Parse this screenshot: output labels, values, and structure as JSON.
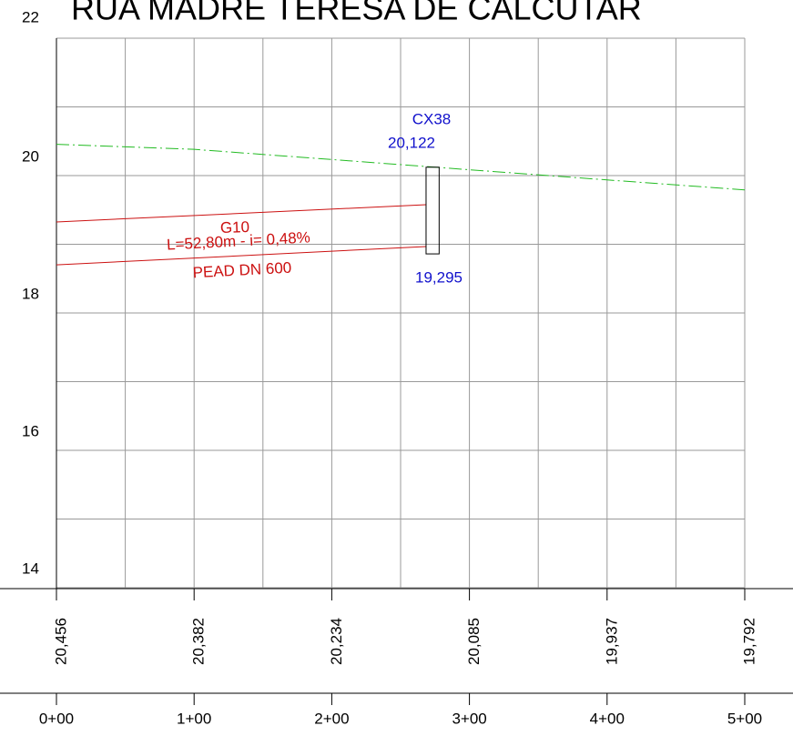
{
  "chart_data": {
    "type": "profile",
    "title": "RUA MADRE TERESA DE CALCUTAR",
    "xlim": [
      0,
      5
    ],
    "xticks": [
      {
        "value": 0,
        "label": "0+00"
      },
      {
        "value": 1,
        "label": "1+00"
      },
      {
        "value": 2,
        "label": "2+00"
      },
      {
        "value": 3,
        "label": "3+00"
      },
      {
        "value": 4,
        "label": "4+00"
      },
      {
        "value": 5,
        "label": "5+00"
      }
    ],
    "xgrid": [
      0,
      0.5,
      1,
      1.5,
      2,
      2.5,
      3,
      3.5,
      4,
      4.5,
      5
    ],
    "ylim": [
      14,
      22
    ],
    "yticks": [
      14,
      16,
      18,
      20,
      22
    ],
    "ygrid": [
      14,
      15,
      16,
      17,
      18,
      19,
      20,
      21,
      22
    ],
    "terrain": {
      "color": "#22bb22",
      "x": [
        0,
        1,
        2,
        3,
        4,
        5
      ],
      "values": [
        20.456,
        20.382,
        20.234,
        20.085,
        19.937,
        19.792
      ],
      "value_labels": [
        "20,456",
        "20,382",
        "20,234",
        "20,085",
        "19,937",
        "19,792"
      ]
    },
    "pipe": {
      "name": "G10",
      "length_label": "L=52,80m  - i= 0,48%",
      "material": "PEAD DN 600",
      "color": "#cc1111",
      "x": [
        0,
        2.685
      ],
      "crown": [
        19.325,
        19.576
      ],
      "invert": [
        18.7,
        18.967
      ]
    },
    "manhole": {
      "name": "CX38",
      "color": "#1111cc",
      "x": [
        2.685,
        2.78
      ],
      "top": 20.122,
      "top_label": "20,122",
      "bottom": 18.86,
      "annotation": "19,295"
    }
  }
}
